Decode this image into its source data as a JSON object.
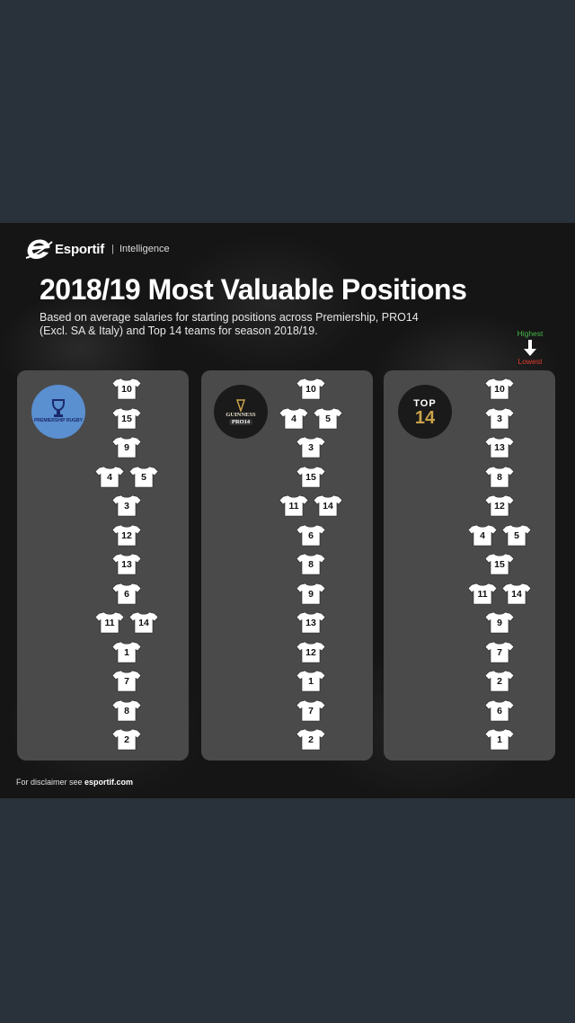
{
  "brand": {
    "name": "Esportif",
    "separator": "|",
    "sub": "Intelligence"
  },
  "title": "2018/19 Most Valuable Positions",
  "subtitle": "Based on average salaries for starting positions across Premiership, PRO14 (Excl. SA & Italy) and Top 14 teams for season 2018/19.",
  "legend": {
    "high": "Highest",
    "low": "Lowest",
    "high_color": "#45b94a",
    "low_color": "#e23b2e"
  },
  "leagues": [
    {
      "logo_text": "PREMIERSHIP RUGBY",
      "rows": [
        [
          "10"
        ],
        [
          "15"
        ],
        [
          "9"
        ],
        [
          "4",
          "5"
        ],
        [
          "3"
        ],
        [
          "12"
        ],
        [
          "13"
        ],
        [
          "6"
        ],
        [
          "11",
          "14"
        ],
        [
          "1"
        ],
        [
          "7"
        ],
        [
          "8"
        ],
        [
          "2"
        ]
      ]
    },
    {
      "logo_text": "GUINNESS",
      "logo_sub": "PRO14",
      "rows": [
        [
          "10"
        ],
        [
          "4",
          "5"
        ],
        [
          "3"
        ],
        [
          "15"
        ],
        [
          "11",
          "14"
        ],
        [
          "6"
        ],
        [
          "8"
        ],
        [
          "9"
        ],
        [
          "13"
        ],
        [
          "12"
        ],
        [
          "1"
        ],
        [
          "7"
        ],
        [
          "2"
        ]
      ]
    },
    {
      "logo_text": "TOP",
      "logo_sub": "14",
      "rows": [
        [
          "10"
        ],
        [
          "3"
        ],
        [
          "13"
        ],
        [
          "8"
        ],
        [
          "12"
        ],
        [
          "4",
          "5"
        ],
        [
          "15"
        ],
        [
          "11",
          "14"
        ],
        [
          "9"
        ],
        [
          "7"
        ],
        [
          "2"
        ],
        [
          "6"
        ],
        [
          "1"
        ]
      ]
    }
  ],
  "footer": {
    "prefix": "For disclaimer see",
    "link": "esportif.com"
  },
  "colors": {
    "panel": "#4a4a4a",
    "background": "#151515",
    "page": "#29313a",
    "jersey": "#ffffff"
  }
}
